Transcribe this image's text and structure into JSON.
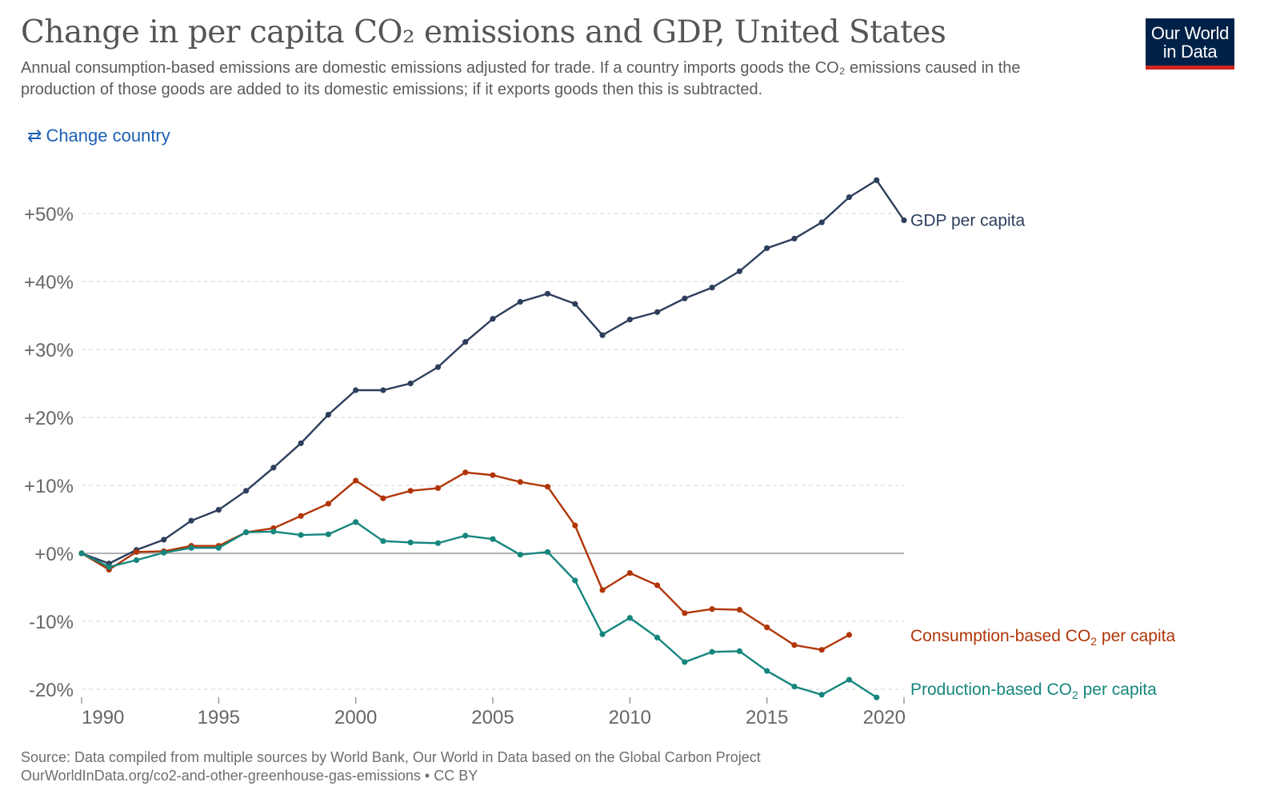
{
  "header": {
    "title": "Change in per capita CO₂ emissions and GDP, United States",
    "subtitle": "Annual consumption-based emissions are domestic emissions adjusted for trade. If a country imports goods the CO₂ emissions caused in the production of those goods are added to its domestic emissions; if it exports goods then this is subtracted.",
    "logo_line1": "Our World",
    "logo_line2": "in Data"
  },
  "controls": {
    "change_country_label": "Change country",
    "change_country_icon": "swap-arrows-icon"
  },
  "footer": {
    "source": "Source: Data compiled from multiple sources by World Bank, Our World in Data based on the Global Carbon Project",
    "url_line": "OurWorldInData.org/co2-and-other-greenhouse-gas-emissions • CC BY"
  },
  "colors": {
    "gdp": "#2d3e5c",
    "consumption": "#b13507",
    "production": "#15867d",
    "grid": "#dddddd",
    "zero_line": "#9a9a9a",
    "axis_text": "#666666",
    "logo_bg": "#002147",
    "logo_accent": "#ce261e",
    "link": "#1a5fb4"
  },
  "chart_data": {
    "type": "line",
    "title": "Change in per capita CO₂ emissions and GDP, United States",
    "xlabel": "",
    "ylabel": "",
    "xlim": [
      1990,
      2020
    ],
    "ylim": [
      -20,
      50
    ],
    "x_ticks": [
      1990,
      1995,
      2000,
      2005,
      2010,
      2015,
      2020
    ],
    "y_ticks": [
      -20,
      -10,
      0,
      10,
      20,
      30,
      40,
      50
    ],
    "y_tick_labels": [
      "-20%",
      "-10%",
      "+0%",
      "+10%",
      "+20%",
      "+30%",
      "+40%",
      "+50%"
    ],
    "grid": "horizontal dashed",
    "legend": "line end labels on the right",
    "series": [
      {
        "name": "GDP per capita",
        "label_main": "GDP per capita",
        "label_sub": "",
        "label_tail": "",
        "color_key": "gdp",
        "x": [
          1990,
          1991,
          1992,
          1993,
          1994,
          1995,
          1996,
          1997,
          1998,
          1999,
          2000,
          2001,
          2002,
          2003,
          2004,
          2005,
          2006,
          2007,
          2008,
          2009,
          2010,
          2011,
          2012,
          2013,
          2014,
          2015,
          2016,
          2017,
          2018,
          2019,
          2020
        ],
        "y": [
          0.0,
          -1.5,
          0.5,
          2.0,
          4.8,
          6.4,
          9.2,
          12.6,
          16.2,
          20.4,
          24.0,
          24.0,
          25.0,
          27.4,
          31.1,
          34.5,
          37.0,
          38.2,
          36.7,
          32.1,
          34.4,
          35.5,
          37.5,
          39.1,
          41.5,
          44.9,
          46.3,
          48.7,
          52.4,
          54.9,
          49.0
        ]
      },
      {
        "name": "Consumption-based CO₂ per capita",
        "label_main": "Consumption-based CO",
        "label_sub": "2",
        "label_tail": " per capita",
        "color_key": "consumption",
        "x": [
          1990,
          1991,
          1992,
          1993,
          1994,
          1995,
          1996,
          1997,
          1998,
          1999,
          2000,
          2001,
          2002,
          2003,
          2004,
          2005,
          2006,
          2007,
          2008,
          2009,
          2010,
          2011,
          2012,
          2013,
          2014,
          2015,
          2016,
          2017,
          2018
        ],
        "y": [
          0.0,
          -2.4,
          0.2,
          0.3,
          1.1,
          1.1,
          3.1,
          3.7,
          5.5,
          7.3,
          10.7,
          8.1,
          9.2,
          9.6,
          11.9,
          11.5,
          10.5,
          9.8,
          4.1,
          -5.4,
          -2.9,
          -4.7,
          -8.8,
          -8.2,
          -8.3,
          -10.9,
          -13.5,
          -14.2,
          -12.0
        ]
      },
      {
        "name": "Production-based CO₂ per capita",
        "label_main": "Production-based CO",
        "label_sub": "2",
        "label_tail": " per capita",
        "color_key": "production",
        "x": [
          1990,
          1991,
          1992,
          1993,
          1994,
          1995,
          1996,
          1997,
          1998,
          1999,
          2000,
          2001,
          2002,
          2003,
          2004,
          2005,
          2006,
          2007,
          2008,
          2009,
          2010,
          2011,
          2012,
          2013,
          2014,
          2015,
          2016,
          2017,
          2018,
          2019
        ],
        "y": [
          0.0,
          -2.0,
          -1.0,
          0.1,
          0.8,
          0.8,
          3.1,
          3.2,
          2.7,
          2.8,
          4.6,
          1.8,
          1.6,
          1.5,
          2.6,
          2.1,
          -0.2,
          0.2,
          -4.0,
          -11.9,
          -9.5,
          -12.4,
          -16.0,
          -14.5,
          -14.4,
          -17.3,
          -19.6,
          -20.8,
          -18.6,
          -21.2
        ]
      }
    ]
  }
}
